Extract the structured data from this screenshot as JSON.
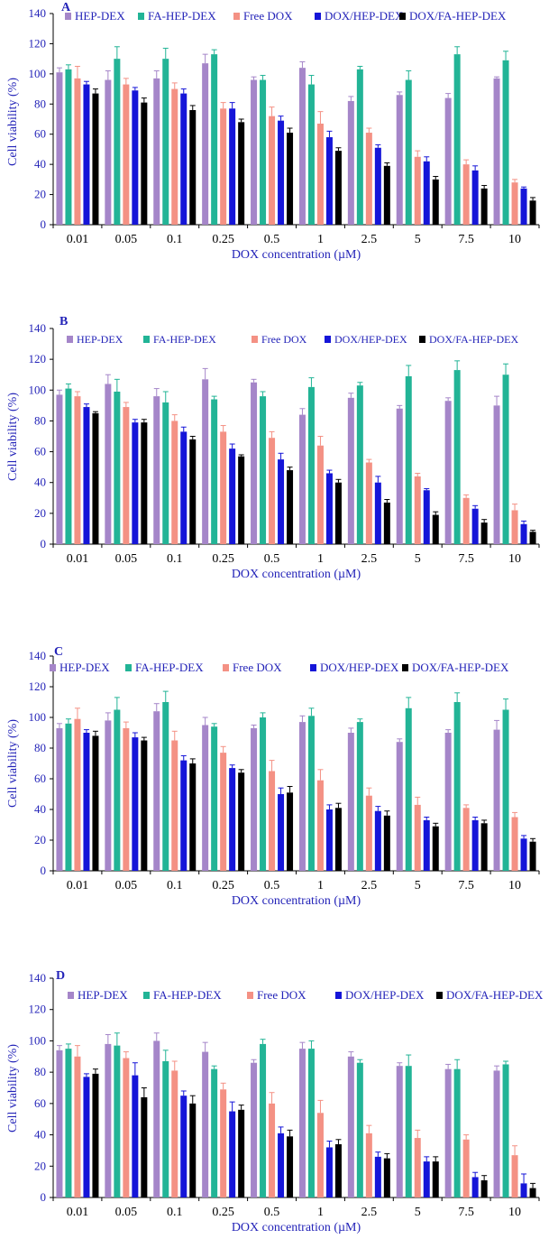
{
  "colors": {
    "HEP-DEX": "#a586c9",
    "FA-HEP-DEX": "#22b496",
    "Free DOX": "#f49184",
    "DOX/HEP-DEX": "#1515d8",
    "DOX/FA-HEP-DEX": "#000000",
    "axis_text": "#2323b8",
    "axis_line": "#000000"
  },
  "chart_data": [
    {
      "type": "bar",
      "panel_label": "A",
      "xlabel": "DOX concentration (µM)",
      "ylabel": "Cell viability (%)",
      "ylim": [
        0,
        140
      ],
      "yticks": [
        "0",
        "20",
        "40",
        "60",
        "80",
        "100",
        "120",
        "140"
      ],
      "categories": [
        "0.01",
        "0.05",
        "0.1",
        "0.25",
        "0.5",
        "1",
        "2.5",
        "5",
        "7.5",
        "10"
      ],
      "legend_position": "top",
      "series": [
        {
          "name": "HEP-DEX",
          "values": [
            101,
            96,
            97,
            107,
            96,
            104,
            82,
            86,
            84,
            97
          ],
          "errors": [
            3,
            6,
            5,
            6,
            2,
            4,
            3,
            2,
            3,
            1
          ]
        },
        {
          "name": "FA-HEP-DEX",
          "values": [
            103,
            110,
            110,
            113,
            96,
            93,
            103,
            96,
            113,
            109
          ],
          "errors": [
            3,
            8,
            7,
            3,
            3,
            6,
            2,
            6,
            5,
            6
          ]
        },
        {
          "name": "Free DOX",
          "values": [
            97,
            93,
            90,
            77,
            72,
            67,
            61,
            45,
            40,
            28
          ],
          "errors": [
            8,
            4,
            4,
            4,
            6,
            8,
            3,
            4,
            3,
            2
          ]
        },
        {
          "name": "DOX/HEP-DEX",
          "values": [
            93,
            89,
            87,
            77,
            69,
            58,
            51,
            42,
            36,
            24
          ],
          "errors": [
            2,
            2,
            3,
            4,
            3,
            4,
            2,
            3,
            3,
            1
          ]
        },
        {
          "name": "DOX/FA-HEP-DEX",
          "values": [
            87,
            81,
            76,
            68,
            61,
            49,
            39,
            30,
            24,
            16
          ],
          "errors": [
            3,
            3,
            3,
            2,
            3,
            2,
            2,
            2,
            2,
            2
          ]
        }
      ]
    },
    {
      "type": "bar",
      "panel_label": "B",
      "xlabel": "DOX concentration (µM)",
      "ylabel": "Cell viability (%)",
      "ylim": [
        0,
        140
      ],
      "yticks": [
        "0",
        "20",
        "40",
        "60",
        "80",
        "100",
        "120",
        "140"
      ],
      "categories": [
        "0.01",
        "0.05",
        "0.1",
        "0.25",
        "0.5",
        "1",
        "2.5",
        "5",
        "7.5",
        "10"
      ],
      "legend_position": "top",
      "series": [
        {
          "name": "HEP-DEX",
          "values": [
            97,
            104,
            96,
            107,
            105,
            84,
            95,
            88,
            93,
            90
          ],
          "errors": [
            3,
            6,
            5,
            7,
            2,
            4,
            3,
            2,
            2,
            6
          ]
        },
        {
          "name": "FA-HEP-DEX",
          "values": [
            101,
            99,
            92,
            94,
            96,
            102,
            103,
            109,
            113,
            110
          ],
          "errors": [
            3,
            8,
            7,
            2,
            3,
            6,
            2,
            7,
            6,
            7
          ]
        },
        {
          "name": "Free DOX",
          "values": [
            96,
            89,
            80,
            73,
            69,
            64,
            53,
            44,
            30,
            22
          ],
          "errors": [
            3,
            3,
            4,
            4,
            4,
            6,
            2,
            2,
            2,
            4
          ]
        },
        {
          "name": "DOX/HEP-DEX",
          "values": [
            89,
            79,
            73,
            62,
            55,
            46,
            40,
            35,
            23,
            13
          ],
          "errors": [
            2,
            2,
            3,
            3,
            4,
            2,
            4,
            1,
            2,
            2
          ]
        },
        {
          "name": "DOX/FA-HEP-DEX",
          "values": [
            85,
            79,
            68,
            57,
            48,
            40,
            27,
            19,
            14,
            8
          ],
          "errors": [
            1,
            2,
            2,
            1,
            2,
            2,
            2,
            2,
            2,
            1
          ]
        }
      ]
    },
    {
      "type": "bar",
      "panel_label": "C",
      "xlabel": "DOX concentration (µM)",
      "ylabel": "Cell viability (%)",
      "ylim": [
        0,
        140
      ],
      "yticks": [
        "0",
        "20",
        "40",
        "60",
        "80",
        "100",
        "120",
        "140"
      ],
      "categories": [
        "0.01",
        "0.05",
        "0.1",
        "0.25",
        "0.5",
        "1",
        "2.5",
        "5",
        "7.5",
        "10"
      ],
      "legend_position": "top",
      "series": [
        {
          "name": "HEP-DEX",
          "values": [
            93,
            98,
            104,
            95,
            93,
            97,
            90,
            84,
            90,
            92
          ],
          "errors": [
            3,
            5,
            5,
            5,
            2,
            4,
            3,
            2,
            2,
            6
          ]
        },
        {
          "name": "FA-HEP-DEX",
          "values": [
            96,
            105,
            110,
            94,
            100,
            101,
            97,
            106,
            110,
            105
          ],
          "errors": [
            3,
            8,
            7,
            2,
            3,
            5,
            2,
            7,
            6,
            7
          ]
        },
        {
          "name": "Free DOX",
          "values": [
            99,
            93,
            85,
            77,
            65,
            59,
            49,
            43,
            41,
            35
          ],
          "errors": [
            7,
            4,
            6,
            4,
            7,
            7,
            5,
            5,
            2,
            3
          ]
        },
        {
          "name": "DOX/HEP-DEX",
          "values": [
            90,
            87,
            72,
            67,
            50,
            40,
            39,
            33,
            33,
            21
          ],
          "errors": [
            2,
            3,
            3,
            2,
            4,
            3,
            3,
            2,
            2,
            2
          ]
        },
        {
          "name": "DOX/FA-HEP-DEX",
          "values": [
            88,
            85,
            70,
            64,
            51,
            41,
            36,
            29,
            31,
            19
          ],
          "errors": [
            3,
            2,
            3,
            2,
            4,
            3,
            3,
            2,
            2,
            2
          ]
        }
      ]
    },
    {
      "type": "bar",
      "panel_label": "D",
      "xlabel": "DOX concentration (µM)",
      "ylabel": "Cell viability (%)",
      "ylim": [
        0,
        140
      ],
      "yticks": [
        "0",
        "20",
        "40",
        "60",
        "80",
        "100",
        "120",
        "140"
      ],
      "categories": [
        "0.01",
        "0.05",
        "0.1",
        "0.25",
        "0.5",
        "1",
        "2.5",
        "5",
        "7.5",
        "10"
      ],
      "legend_position": "top",
      "series": [
        {
          "name": "HEP-DEX",
          "values": [
            94,
            98,
            100,
            93,
            86,
            95,
            90,
            84,
            82,
            81
          ],
          "errors": [
            3,
            6,
            5,
            6,
            2,
            4,
            3,
            2,
            3,
            3
          ]
        },
        {
          "name": "FA-HEP-DEX",
          "values": [
            95,
            97,
            87,
            82,
            98,
            95,
            86,
            84,
            82,
            85
          ],
          "errors": [
            3,
            8,
            7,
            2,
            3,
            5,
            2,
            7,
            6,
            2
          ]
        },
        {
          "name": "Free DOX",
          "values": [
            90,
            89,
            81,
            69,
            60,
            54,
            41,
            38,
            37,
            27
          ],
          "errors": [
            7,
            4,
            6,
            4,
            7,
            8,
            5,
            5,
            3,
            6
          ]
        },
        {
          "name": "DOX/HEP-DEX",
          "values": [
            77,
            78,
            65,
            55,
            41,
            32,
            26,
            23,
            13,
            9
          ],
          "errors": [
            2,
            8,
            3,
            6,
            4,
            4,
            3,
            3,
            3,
            6
          ]
        },
        {
          "name": "DOX/FA-HEP-DEX",
          "values": [
            79,
            64,
            60,
            56,
            39,
            34,
            25,
            23,
            11,
            6
          ],
          "errors": [
            3,
            6,
            5,
            3,
            4,
            3,
            3,
            3,
            3,
            3
          ]
        }
      ]
    }
  ]
}
